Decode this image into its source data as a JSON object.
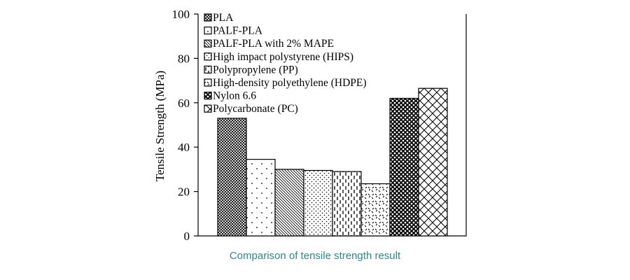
{
  "chart_data": {
    "type": "bar",
    "ylabel": "Tensile Strength (MPa)",
    "xlabel": "",
    "ylim": [
      0,
      100
    ],
    "yticks": [
      0,
      20,
      40,
      60,
      80,
      100
    ],
    "legend_position": "top-left",
    "grid": false,
    "series": [
      {
        "name": "PLA",
        "value": 53,
        "pattern": "fine-crosshatch"
      },
      {
        "name": "PALF-PLA",
        "value": 34.5,
        "pattern": "sparse-dots"
      },
      {
        "name": "PALF-PLA with 2% MAPE",
        "value": 30,
        "pattern": "diagonal-lines"
      },
      {
        "name": "High impact polystyrene (HIPS)",
        "value": 29.5,
        "pattern": "dense-dots"
      },
      {
        "name": "Polypropylene (PP)",
        "value": 29,
        "pattern": "vertical-dashes"
      },
      {
        "name": "High-density polyethylene (HDPE)",
        "value": 23.5,
        "pattern": "zigzag-dots"
      },
      {
        "name": "Nylon 6.6",
        "value": 62,
        "pattern": "dark-diamond"
      },
      {
        "name": "Polycarbonate (PC)",
        "value": 66.5,
        "pattern": "open-diamond"
      }
    ]
  },
  "caption": "Comparison of tensile strength result"
}
